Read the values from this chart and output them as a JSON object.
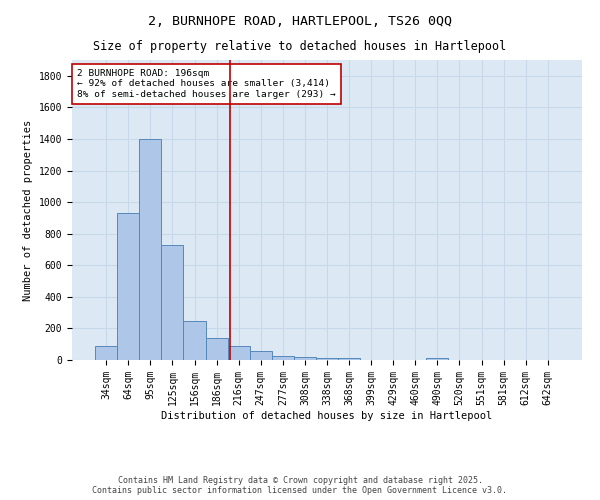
{
  "title_line1": "2, BURNHOPE ROAD, HARTLEPOOL, TS26 0QQ",
  "title_line2": "Size of property relative to detached houses in Hartlepool",
  "xlabel": "Distribution of detached houses by size in Hartlepool",
  "ylabel": "Number of detached properties",
  "categories": [
    "34sqm",
    "64sqm",
    "95sqm",
    "125sqm",
    "156sqm",
    "186sqm",
    "216sqm",
    "247sqm",
    "277sqm",
    "308sqm",
    "338sqm",
    "368sqm",
    "399sqm",
    "429sqm",
    "460sqm",
    "490sqm",
    "520sqm",
    "551sqm",
    "581sqm",
    "612sqm",
    "642sqm"
  ],
  "values": [
    90,
    930,
    1400,
    730,
    250,
    140,
    90,
    55,
    25,
    20,
    15,
    10,
    0,
    0,
    0,
    15,
    0,
    0,
    0,
    0,
    0
  ],
  "bar_color": "#aec6e8",
  "bar_edge_color": "#5588bb",
  "vline_x": 5.6,
  "vline_color": "#c00000",
  "annotation_text": "2 BURNHOPE ROAD: 196sqm\n← 92% of detached houses are smaller (3,414)\n8% of semi-detached houses are larger (293) →",
  "annotation_box_color": "#ffffff",
  "annotation_box_edge": "#c00000",
  "ylim": [
    0,
    1900
  ],
  "yticks": [
    0,
    200,
    400,
    600,
    800,
    1000,
    1200,
    1400,
    1600,
    1800
  ],
  "grid_color": "#c8d8e8",
  "background_color": "#dce9f5",
  "footer_line1": "Contains HM Land Registry data © Crown copyright and database right 2025.",
  "footer_line2": "Contains public sector information licensed under the Open Government Licence v3.0.",
  "title_fontsize": 9.5,
  "subtitle_fontsize": 8.5,
  "axis_label_fontsize": 7.5,
  "tick_fontsize": 7,
  "annotation_fontsize": 6.8,
  "footer_fontsize": 6
}
